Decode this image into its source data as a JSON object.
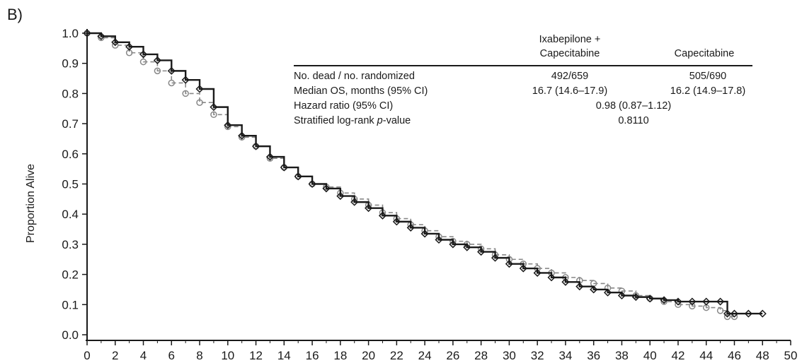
{
  "panel_label": "B)",
  "chart_data": {
    "type": "line",
    "title": "",
    "xlabel": "",
    "ylabel": "Proportion Alive",
    "xlim": [
      0,
      50
    ],
    "ylim": [
      0.0,
      1.0
    ],
    "x_ticks": [
      "0",
      "2",
      "4",
      "6",
      "8",
      "10",
      "12",
      "14",
      "16",
      "18",
      "20",
      "22",
      "24",
      "26",
      "28",
      "30",
      "32",
      "34",
      "36",
      "38",
      "40",
      "42",
      "44",
      "46",
      "48",
      "50"
    ],
    "y_ticks": [
      "0.0",
      "0.1",
      "0.2",
      "0.3",
      "0.4",
      "0.5",
      "0.6",
      "0.7",
      "0.8",
      "0.9",
      "1.0"
    ],
    "grid": false,
    "series": [
      {
        "name": "Ixabepilone + Capecitabine",
        "style": "solid",
        "marker": "diamond",
        "color": "#1a1a1a",
        "x": [
          0,
          1,
          2,
          3,
          4,
          5,
          6,
          7,
          8,
          9,
          10,
          11,
          12,
          13,
          14,
          15,
          16,
          17,
          18,
          19,
          20,
          21,
          22,
          23,
          24,
          25,
          26,
          27,
          28,
          29,
          30,
          31,
          32,
          33,
          34,
          35,
          36,
          37,
          38,
          39,
          40,
          41,
          42,
          43,
          44,
          45,
          45.5,
          46,
          47,
          48
        ],
        "y": [
          1.0,
          0.99,
          0.97,
          0.955,
          0.93,
          0.91,
          0.875,
          0.845,
          0.815,
          0.755,
          0.695,
          0.66,
          0.625,
          0.59,
          0.555,
          0.525,
          0.5,
          0.485,
          0.46,
          0.44,
          0.42,
          0.395,
          0.375,
          0.355,
          0.335,
          0.315,
          0.3,
          0.29,
          0.275,
          0.255,
          0.235,
          0.22,
          0.205,
          0.19,
          0.175,
          0.16,
          0.15,
          0.14,
          0.13,
          0.125,
          0.12,
          0.115,
          0.11,
          0.11,
          0.11,
          0.11,
          0.07,
          0.07,
          0.07,
          0.07
        ]
      },
      {
        "name": "Capecitabine",
        "style": "dashed",
        "marker": "circle",
        "color": "#888888",
        "x": [
          0,
          1,
          2,
          3,
          4,
          5,
          6,
          7,
          8,
          9,
          10,
          11,
          12,
          13,
          14,
          15,
          16,
          17,
          18,
          19,
          20,
          21,
          22,
          23,
          24,
          25,
          26,
          27,
          28,
          29,
          30,
          31,
          32,
          33,
          34,
          35,
          36,
          37,
          38,
          39,
          40,
          41,
          42,
          43,
          44,
          45,
          45.5,
          46
        ],
        "y": [
          1.0,
          0.985,
          0.96,
          0.935,
          0.905,
          0.875,
          0.835,
          0.8,
          0.77,
          0.73,
          0.69,
          0.655,
          0.625,
          0.585,
          0.555,
          0.525,
          0.5,
          0.49,
          0.47,
          0.45,
          0.43,
          0.405,
          0.385,
          0.365,
          0.345,
          0.325,
          0.31,
          0.3,
          0.285,
          0.265,
          0.25,
          0.235,
          0.22,
          0.205,
          0.19,
          0.18,
          0.17,
          0.155,
          0.145,
          0.13,
          0.12,
          0.11,
          0.1,
          0.095,
          0.09,
          0.08,
          0.06,
          0.06
        ]
      }
    ]
  },
  "stats_table": {
    "col_headers": [
      {
        "line1": "Ixabepilone +",
        "line2": "Capecitabine"
      },
      {
        "line1": "",
        "line2": "Capecitabine"
      }
    ],
    "rows": [
      {
        "label": "No. dead / no. randomized",
        "col1": "492/659",
        "col2": "505/690",
        "span": ""
      },
      {
        "label": "Median OS, months (95% CI)",
        "col1": "16.7 (14.6–17.9)",
        "col2": "16.2 (14.9–17.8)",
        "span": ""
      },
      {
        "label": "Hazard ratio (95% CI)",
        "col1": "",
        "col2": "",
        "span": "0.98 (0.87–1.12)"
      },
      {
        "label": "Stratified log-rank p-value",
        "label_pre": "Stratified log-rank ",
        "label_italic": "p",
        "label_post": "-value",
        "col1": "",
        "col2": "",
        "span": "0.8110"
      }
    ]
  }
}
